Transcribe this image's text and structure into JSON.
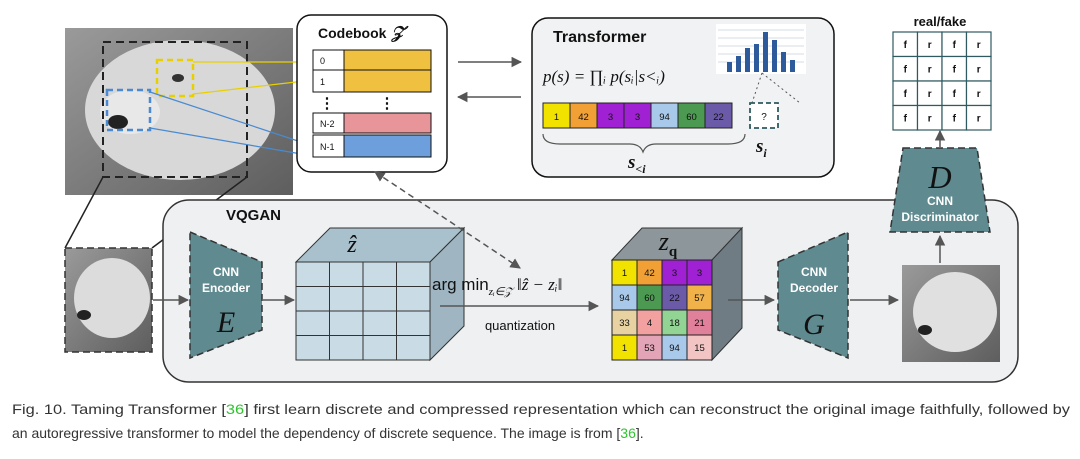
{
  "codebook": {
    "title": "Codebook",
    "symbol": "𝒵",
    "rows": [
      {
        "index": "0",
        "color": "#f0c040"
      },
      {
        "index": "1",
        "color": "#f0c040"
      },
      {
        "index": "N-2",
        "color": "#e8959a"
      },
      {
        "index": "N-1",
        "color": "#6d9fdc"
      }
    ],
    "ellipsis": [
      "⋮",
      "⋮"
    ]
  },
  "transformer": {
    "title": "Transformer",
    "formula": "p(s) = ∏ᵢ p(sᵢ|s<ᵢ)",
    "tokens": [
      {
        "label": "1",
        "color": "#f2e200"
      },
      {
        "label": "42",
        "color": "#f0a035"
      },
      {
        "label": "3",
        "color": "#a021d4"
      },
      {
        "label": "3",
        "color": "#a021d4"
      },
      {
        "label": "94",
        "color": "#a9c9ea"
      },
      {
        "label": "60",
        "color": "#4c9a52"
      },
      {
        "label": "22",
        "color": "#6b5aa8"
      }
    ],
    "next_token": "?",
    "context_label": {
      "main": "s",
      "sub": "<i"
    },
    "target_label": {
      "main": "s",
      "sub": "i"
    }
  },
  "discriminator": {
    "output_title": "real/fake",
    "output_grid": [
      [
        "f",
        "r",
        "f",
        "r"
      ],
      [
        "f",
        "r",
        "f",
        "r"
      ],
      [
        "f",
        "r",
        "f",
        "r"
      ],
      [
        "f",
        "r",
        "f",
        "r"
      ]
    ],
    "symbol": "D",
    "label": [
      "CNN",
      "Discriminator"
    ]
  },
  "vqgan": {
    "title": "VQGAN",
    "encoder": {
      "label": [
        "CNN",
        "Encoder"
      ],
      "symbol": "E"
    },
    "z_hat": "ẑ",
    "argmin": {
      "main": "arg min",
      "sub": "zᵢ∈𝒵",
      "tail": " ‖ẑ − zᵢ‖"
    },
    "quantization": "quantization",
    "z_q": {
      "main": "z",
      "sub": "q"
    },
    "z_q_grid": [
      [
        {
          "label": "1",
          "color": "#f2e200"
        },
        {
          "label": "42",
          "color": "#f0a035"
        },
        {
          "label": "3",
          "color": "#a021d4"
        },
        {
          "label": "3",
          "color": "#a021d4"
        }
      ],
      [
        {
          "label": "94",
          "color": "#a9c9ea"
        },
        {
          "label": "60",
          "color": "#4c9a52"
        },
        {
          "label": "22",
          "color": "#6b5aa8"
        },
        {
          "label": "57",
          "color": "#f2b24a"
        }
      ],
      [
        {
          "label": "33",
          "color": "#e8d2a2"
        },
        {
          "label": "4",
          "color": "#f2a0a0"
        },
        {
          "label": "18",
          "color": "#92d494"
        },
        {
          "label": "21",
          "color": "#e0809a"
        }
      ],
      [
        {
          "label": "1",
          "color": "#f2e200"
        },
        {
          "label": "53",
          "color": "#e2a4b6"
        },
        {
          "label": "94",
          "color": "#a9c9ea"
        },
        {
          "label": "15",
          "color": "#f2c4c4"
        }
      ]
    ],
    "decoder": {
      "label": [
        "CNN",
        "Decoder"
      ],
      "symbol": "G"
    }
  },
  "caption": {
    "lines": [
      [
        {
          "text": "Fig. 10.  Taming Transformer [",
          "color": "#333333"
        },
        {
          "text": "36",
          "color": "#2fc42f"
        },
        {
          "text": "] first learn discrete and compressed representation which can reconstruct the original image faithfully, followed by",
          "color": "#333333"
        }
      ],
      [
        {
          "text": "an autoregressive transformer to model the dependency of discrete sequence. The image is from [",
          "color": "#333333"
        },
        {
          "text": "36",
          "color": "#2fc42f"
        },
        {
          "text": "].",
          "color": "#333333"
        }
      ]
    ]
  }
}
